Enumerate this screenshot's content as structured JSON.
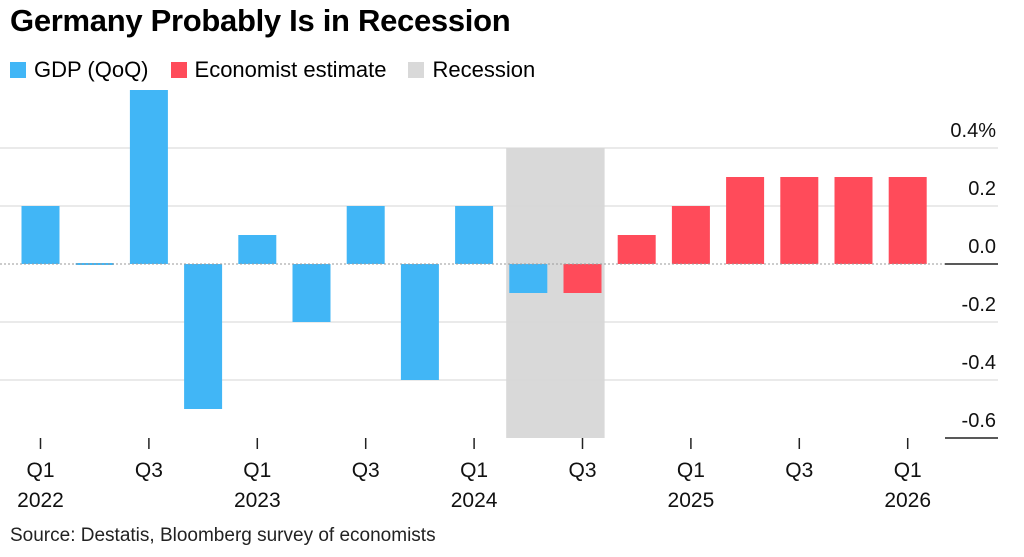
{
  "chart_data": {
    "type": "bar",
    "title": "Germany Probably Is in Recession",
    "source": "Source: Destatis, Bloomberg survey of economists",
    "legend": [
      {
        "name": "GDP (QoQ)",
        "color": "#41b6f6"
      },
      {
        "name": "Economist estimate",
        "color": "#ff4b5a"
      },
      {
        "name": "Recession",
        "color": "#d9d9d9"
      }
    ],
    "legend_position": "top-left",
    "categories": [
      "Q1 2022",
      "Q2 2022",
      "Q3 2022",
      "Q4 2022",
      "Q1 2023",
      "Q2 2023",
      "Q3 2023",
      "Q4 2023",
      "Q1 2024",
      "Q2 2024",
      "Q3 2024",
      "Q4 2024",
      "Q1 2025",
      "Q2 2025",
      "Q3 2025",
      "Q4 2025",
      "Q1 2026"
    ],
    "series": [
      {
        "name": "GDP (QoQ)",
        "color": "#41b6f6",
        "values": [
          0.2,
          0.0,
          0.6,
          -0.5,
          0.1,
          -0.2,
          0.2,
          -0.4,
          0.2,
          -0.1,
          null,
          null,
          null,
          null,
          null,
          null,
          null
        ]
      },
      {
        "name": "Economist estimate",
        "color": "#ff4b5a",
        "values": [
          null,
          null,
          null,
          null,
          null,
          null,
          null,
          null,
          null,
          null,
          -0.1,
          0.1,
          0.2,
          0.3,
          0.3,
          0.3,
          0.3
        ]
      }
    ],
    "recession_period": [
      "Q2 2024",
      "Q3 2024"
    ],
    "y_ticks": [
      {
        "value": 0.4,
        "label": "0.4%"
      },
      {
        "value": 0.2,
        "label": "0.2"
      },
      {
        "value": 0.0,
        "label": "0.0"
      },
      {
        "value": -0.2,
        "label": "-0.2"
      },
      {
        "value": -0.4,
        "label": "-0.4"
      },
      {
        "value": -0.6,
        "label": "-0.6"
      }
    ],
    "ylim": [
      -0.6,
      0.6
    ],
    "y_axis_side": "right",
    "grid": true,
    "x_ticks": [
      {
        "quarter": "Q1",
        "year": "2022"
      },
      {
        "quarter": "Q3",
        "year": ""
      },
      {
        "quarter": "Q1",
        "year": "2023"
      },
      {
        "quarter": "Q3",
        "year": ""
      },
      {
        "quarter": "Q1",
        "year": "2024"
      },
      {
        "quarter": "Q3",
        "year": ""
      },
      {
        "quarter": "Q1",
        "year": "2025"
      },
      {
        "quarter": "Q3",
        "year": ""
      },
      {
        "quarter": "Q1",
        "year": "2026"
      }
    ]
  }
}
